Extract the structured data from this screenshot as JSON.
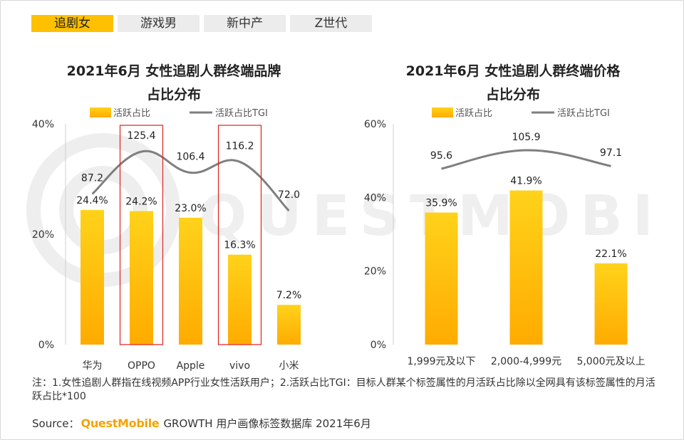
{
  "tabs": [
    {
      "label": "追剧女",
      "active": true
    },
    {
      "label": "游戏男",
      "active": false
    },
    {
      "label": "新中产",
      "active": false
    },
    {
      "label": "Z世代",
      "active": false
    }
  ],
  "watermark_text": "QUESTMOBILE",
  "colors": {
    "bar_top": "#ffd21a",
    "bar_bottom": "#ffab00",
    "line": "#7f7f7f",
    "highlight": "#e02020",
    "tab_active": "#ffc000"
  },
  "chart_data": [
    {
      "type": "bar",
      "title": "2021年6月 女性追剧人群终端品牌",
      "title_line2": "占比分布",
      "legend": [
        "活跃占比",
        "活跃占比TGI"
      ],
      "categories": [
        "华为",
        "OPPO",
        "Apple",
        "vivo",
        "小米"
      ],
      "series": [
        {
          "name": "活跃占比",
          "kind": "bar",
          "values": [
            24.4,
            24.2,
            23.0,
            16.3,
            7.2
          ],
          "labels": [
            "24.4%",
            "24.2%",
            "23.0%",
            "16.3%",
            "7.2%"
          ]
        },
        {
          "name": "活跃占比TGI",
          "kind": "line",
          "values": [
            87.2,
            125.4,
            106.4,
            116.2,
            72.0
          ],
          "labels": [
            "87.2",
            "125.4",
            "106.4",
            "116.2",
            "72.0"
          ]
        }
      ],
      "yticks": [
        "0%",
        "20%",
        "40%"
      ],
      "ylim": [
        0,
        40
      ],
      "highlighted_categories": [
        "OPPO",
        "vivo"
      ]
    },
    {
      "type": "bar",
      "title": "2021年6月 女性追剧人群终端价格",
      "title_line2": "占比分布",
      "legend": [
        "活跃占比",
        "活跃占比TGI"
      ],
      "categories": [
        "1,999元及以下",
        "2,000-4,999元",
        "5,000元及以上"
      ],
      "series": [
        {
          "name": "活跃占比",
          "kind": "bar",
          "values": [
            35.9,
            41.9,
            22.1
          ],
          "labels": [
            "35.9%",
            "41.9%",
            "22.1%"
          ]
        },
        {
          "name": "活跃占比TGI",
          "kind": "line",
          "values": [
            95.6,
            105.9,
            97.1
          ],
          "labels": [
            "95.6",
            "105.9",
            "97.1"
          ]
        }
      ],
      "yticks": [
        "0%",
        "20%",
        "40%",
        "60%"
      ],
      "ylim": [
        0,
        60
      ],
      "highlighted_categories": []
    }
  ],
  "note": "注：1.女性追剧人群指在线视频APP行业女性活跃用户；2.活跃占比TGI：目标人群某个标签属性的月活跃占比除以全网具有该标签属性的月活跃占比*100",
  "source": {
    "prefix": "Source：",
    "brand": "QuestMobile",
    "suffix": "GROWTH 用户画像标签数据库 2021年6月"
  }
}
